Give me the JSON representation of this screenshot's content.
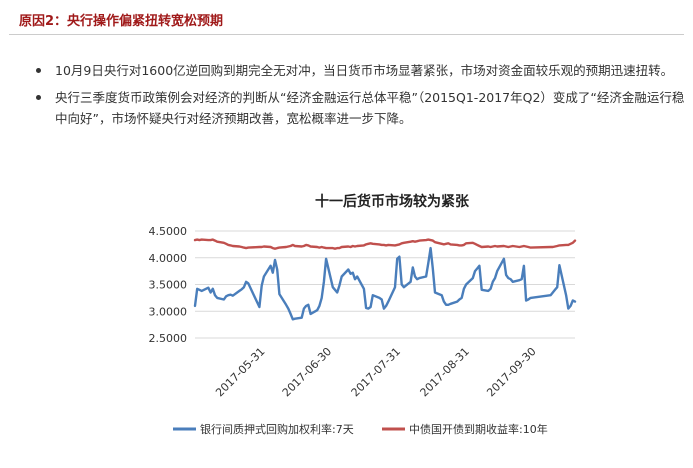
{
  "heading": "原因2：央行操作偏紧扭转宽松预期",
  "bullets": [
    "10月9日央行对1600亿逆回购到期完全无对冲，当日货币市场显著紧张，市场对资金面较乐观的预期迅速扭转。",
    "央行三季度货币政策例会对经济的判断从“经济金融运行总体平稳”（2015Q1-2017年Q2）变成了“经济金融运行稳中向好”，市场怀疑央行对经济预期改善，宽松概率进一步下降。"
  ],
  "colors": {
    "heading": "#a01a1a",
    "series_blue": "#4a7ebb",
    "series_red": "#c0504d",
    "grid": "#d9d9d9"
  },
  "chart_data": {
    "type": "line",
    "title": "十一后货币市场较为紧张",
    "ylim": [
      2.5,
      4.5
    ],
    "yticks": [
      "4.5000",
      "4.0000",
      "3.5000",
      "3.0000",
      "2.5000"
    ],
    "xticks": [
      "2017-05-31",
      "2017-06-30",
      "2017-07-31",
      "2017-08-31",
      "2017-09-30"
    ],
    "grid": true,
    "legend_position": "bottom",
    "x": [
      "2017-05-02",
      "2017-05-03",
      "2017-05-04",
      "2017-05-05",
      "2017-05-08",
      "2017-05-09",
      "2017-05-10",
      "2017-05-11",
      "2017-05-12",
      "2017-05-15",
      "2017-05-16",
      "2017-05-17",
      "2017-05-18",
      "2017-05-19",
      "2017-05-22",
      "2017-05-23",
      "2017-05-24",
      "2017-05-25",
      "2017-05-26",
      "2017-05-31",
      "2017-06-01",
      "2017-06-02",
      "2017-06-05",
      "2017-06-06",
      "2017-06-07",
      "2017-06-08",
      "2017-06-09",
      "2017-06-12",
      "2017-06-13",
      "2017-06-14",
      "2017-06-15",
      "2017-06-16",
      "2017-06-19",
      "2017-06-20",
      "2017-06-21",
      "2017-06-22",
      "2017-06-23",
      "2017-06-26",
      "2017-06-27",
      "2017-06-28",
      "2017-06-29",
      "2017-06-30",
      "2017-07-03",
      "2017-07-04",
      "2017-07-05",
      "2017-07-06",
      "2017-07-07",
      "2017-07-10",
      "2017-07-11",
      "2017-07-12",
      "2017-07-13",
      "2017-07-14",
      "2017-07-17",
      "2017-07-18",
      "2017-07-19",
      "2017-07-20",
      "2017-07-21",
      "2017-07-24",
      "2017-07-25",
      "2017-07-26",
      "2017-07-27",
      "2017-07-28",
      "2017-07-31",
      "2017-08-01",
      "2017-08-02",
      "2017-08-03",
      "2017-08-04",
      "2017-08-07",
      "2017-08-08",
      "2017-08-09",
      "2017-08-10",
      "2017-08-11",
      "2017-08-14",
      "2017-08-15",
      "2017-08-16",
      "2017-08-17",
      "2017-08-18",
      "2017-08-21",
      "2017-08-22",
      "2017-08-23",
      "2017-08-24",
      "2017-08-25",
      "2017-08-28",
      "2017-08-29",
      "2017-08-30",
      "2017-08-31",
      "2017-09-01",
      "2017-09-04",
      "2017-09-05",
      "2017-09-06",
      "2017-09-07",
      "2017-09-08",
      "2017-09-11",
      "2017-09-12",
      "2017-09-13",
      "2017-09-14",
      "2017-09-15",
      "2017-09-18",
      "2017-09-19",
      "2017-09-20",
      "2017-09-21",
      "2017-09-22",
      "2017-09-25",
      "2017-09-26",
      "2017-09-27",
      "2017-09-28",
      "2017-09-29",
      "2017-09-30",
      "2017-10-09",
      "2017-10-10",
      "2017-10-11",
      "2017-10-12",
      "2017-10-13",
      "2017-10-16",
      "2017-10-17",
      "2017-10-18",
      "2017-10-19",
      "2017-10-20"
    ],
    "series": [
      {
        "name": "银行间质押式回购加权利率:7天",
        "color": "#4a7ebb",
        "values": [
          3.1,
          3.42,
          3.4,
          3.38,
          3.44,
          3.35,
          3.42,
          3.3,
          3.25,
          3.22,
          3.28,
          3.3,
          3.31,
          3.29,
          3.38,
          3.41,
          3.45,
          3.55,
          3.52,
          3.08,
          3.48,
          3.65,
          3.85,
          3.72,
          3.96,
          3.78,
          3.32,
          3.12,
          3.05,
          2.95,
          2.85,
          2.86,
          2.88,
          3.05,
          3.1,
          3.12,
          2.95,
          3.02,
          3.1,
          3.25,
          3.55,
          3.98,
          3.45,
          3.4,
          3.35,
          3.48,
          3.65,
          3.78,
          3.7,
          3.72,
          3.6,
          3.65,
          3.42,
          3.06,
          3.05,
          3.08,
          3.3,
          3.25,
          3.22,
          3.05,
          3.1,
          3.18,
          3.45,
          3.98,
          4.02,
          3.5,
          3.45,
          3.55,
          3.82,
          3.65,
          3.6,
          3.62,
          3.65,
          3.9,
          4.18,
          3.8,
          3.35,
          3.3,
          3.18,
          3.12,
          3.12,
          3.14,
          3.18,
          3.22,
          3.25,
          3.42,
          3.5,
          3.62,
          3.75,
          3.8,
          3.85,
          3.4,
          3.38,
          3.42,
          3.55,
          3.62,
          3.75,
          3.98,
          3.68,
          3.62,
          3.6,
          3.55,
          3.58,
          3.6,
          3.85,
          3.2,
          3.22,
          3.25,
          3.3,
          3.35,
          3.4,
          3.45,
          3.86,
          3.3,
          3.05,
          3.1,
          3.2,
          3.18
        ]
      },
      {
        "name": "中债国开债到期收益率:10年",
        "color": "#c0504d",
        "values": [
          4.33,
          4.34,
          4.33,
          4.34,
          4.33,
          4.33,
          4.34,
          4.32,
          4.3,
          4.28,
          4.26,
          4.24,
          4.23,
          4.22,
          4.21,
          4.2,
          4.19,
          4.18,
          4.19,
          4.2,
          4.2,
          4.21,
          4.2,
          4.18,
          4.17,
          4.18,
          4.19,
          4.2,
          4.21,
          4.22,
          4.24,
          4.22,
          4.21,
          4.22,
          4.24,
          4.23,
          4.21,
          4.2,
          4.19,
          4.2,
          4.19,
          4.18,
          4.18,
          4.17,
          4.18,
          4.18,
          4.2,
          4.21,
          4.2,
          4.22,
          4.21,
          4.22,
          4.23,
          4.25,
          4.26,
          4.27,
          4.26,
          4.25,
          4.24,
          4.24,
          4.23,
          4.24,
          4.23,
          4.24,
          4.25,
          4.27,
          4.28,
          4.3,
          4.31,
          4.3,
          4.31,
          4.32,
          4.33,
          4.34,
          4.33,
          4.32,
          4.29,
          4.26,
          4.25,
          4.26,
          4.27,
          4.25,
          4.24,
          4.23,
          4.23,
          4.24,
          4.27,
          4.28,
          4.26,
          4.24,
          4.22,
          4.2,
          4.21,
          4.2,
          4.21,
          4.22,
          4.21,
          4.22,
          4.21,
          4.2,
          4.21,
          4.22,
          4.2,
          4.21,
          4.22,
          4.21,
          4.2,
          4.19,
          4.2,
          4.2,
          4.21,
          4.22,
          4.23,
          4.24,
          4.24,
          4.26,
          4.28,
          4.32
        ]
      }
    ]
  }
}
